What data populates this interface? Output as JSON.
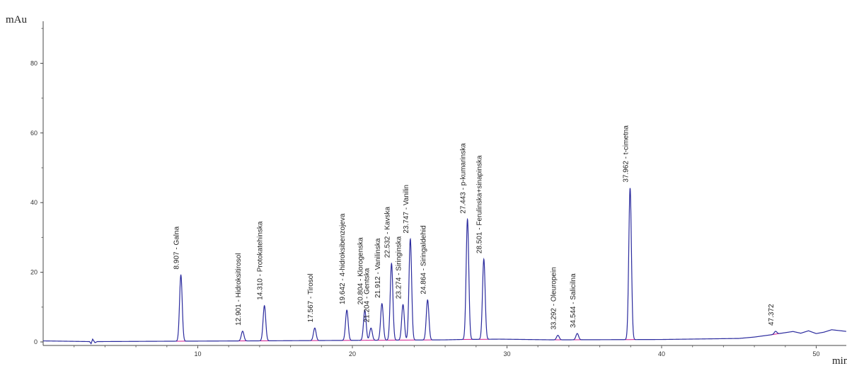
{
  "chart_data": {
    "type": "line",
    "title": "",
    "ylabel": "mAu",
    "xlabel": "min",
    "xlim": [
      0,
      52
    ],
    "ylim": [
      -2,
      95
    ],
    "xticks": [
      10,
      20,
      30,
      40,
      50
    ],
    "yticks": [
      0,
      20,
      40,
      60,
      80
    ],
    "grid": false,
    "series": [
      {
        "line_color": "#2b2b9e",
        "baseline_color": "#d0188c",
        "points": [
          [
            0,
            0.3
          ],
          [
            3,
            0.1
          ],
          [
            3.1,
            -0.5
          ],
          [
            3.2,
            0.8
          ],
          [
            3.35,
            -0.2
          ],
          [
            3.5,
            0.1
          ],
          [
            8,
            0.2
          ],
          [
            13.5,
            0.3
          ],
          [
            26,
            0.6
          ],
          [
            27,
            0.7
          ],
          [
            29.5,
            0.8
          ],
          [
            33,
            0.6
          ],
          [
            40,
            0.7
          ],
          [
            45,
            1.0
          ],
          [
            46,
            1.4
          ],
          [
            47,
            2.0
          ],
          [
            48.5,
            3.0
          ],
          [
            49,
            2.5
          ],
          [
            49.5,
            3.2
          ],
          [
            50,
            2.4
          ],
          [
            50.5,
            2.8
          ],
          [
            51,
            3.5
          ],
          [
            52,
            3.0
          ]
        ],
        "peaks": [
          {
            "rt": 8.907,
            "label": "8.907 -  Galna",
            "height": 19
          },
          {
            "rt": 12.901,
            "label": "12.901 -  Hidroksitirosol",
            "height": 2.8
          },
          {
            "rt": 14.31,
            "label": "14.310 -  Protokatehinska",
            "height": 10.1
          },
          {
            "rt": 17.567,
            "label": "17.567 -  Tirosol",
            "height": 3.6
          },
          {
            "rt": 19.642,
            "label": "19.642 -  4-hidroksibenzojeva",
            "height": 8.7
          },
          {
            "rt": 20.804,
            "label": "20.804 -  Klorogenska",
            "height": 8.6
          },
          {
            "rt": 21.204,
            "label": "21.204 -  Gentska",
            "height": 3.5
          },
          {
            "rt": 21.912,
            "label": "21.912 -  Vanilinska",
            "height": 10.5
          },
          {
            "rt": 22.532,
            "label": "22.532 -  Kavska",
            "height": 22
          },
          {
            "rt": 23.274,
            "label": "23.274 -  Siringinska",
            "height": 10.2
          },
          {
            "rt": 23.747,
            "label": "23.747 -  Vanilin",
            "height": 29
          },
          {
            "rt": 24.864,
            "label": "24.864 -  Siringaldehid",
            "height": 11.5
          },
          {
            "rt": 27.443,
            "label": "27.443 -  p-kumarinska",
            "height": 34.5
          },
          {
            "rt": 28.501,
            "label": "28.501 -  Ferulinska+sinapinska",
            "height": 23
          },
          {
            "rt": 33.292,
            "label": "33.292 -  Oleuropein",
            "height": 1.3
          },
          {
            "rt": 34.544,
            "label": "34.544 -  Salicilna",
            "height": 1.8
          },
          {
            "rt": 37.962,
            "label": "37.962 -  t-cimetna",
            "height": 43.5
          },
          {
            "rt": 47.372,
            "label": "47.372",
            "height": 0.8
          }
        ]
      }
    ]
  }
}
